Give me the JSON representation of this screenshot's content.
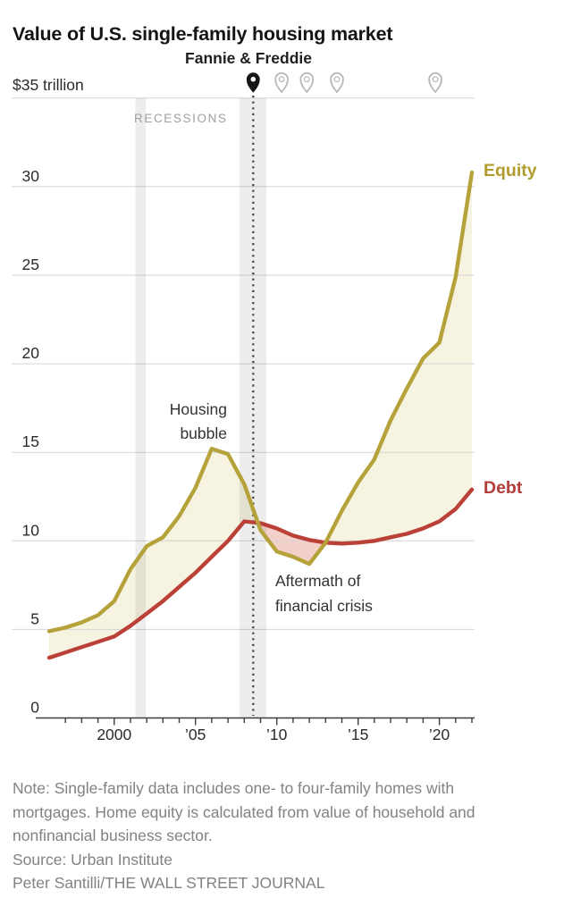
{
  "title": "Value of U.S. single-family housing market",
  "header": {
    "unit_label": "$35 trillion",
    "fannie_label": "Fannie & Freddie"
  },
  "annotations": {
    "recessions": "RECESSIONS",
    "housing_lines": [
      "Housing",
      "bubble"
    ],
    "aftermath_lines": [
      "Aftermath of",
      "financial crisis"
    ],
    "equity": "Equity",
    "debt": "Debt"
  },
  "footer": {
    "note_lines": [
      "Note: Single-family data includes one- to four-family homes with",
      "mortgages. Home equity is calculated from value of household and",
      "nonfinancial business sector."
    ],
    "source": "Source: Urban Institute",
    "credit": "Peter Santilli/THE WALL STREET JOURNAL"
  },
  "colors": {
    "equity_line": "#b5a23a",
    "equity_label": "#b29b2d",
    "debt_line": "#bb4138",
    "debt_label": "#b23c38",
    "equity_fill": "#f7f3e1",
    "debt_fill": "#f4d0cb",
    "recession_band": "rgba(0,0,0,0.07)",
    "gridline": "#d4d4d4",
    "axis": "#3d3d3d",
    "dotted_line": "#4a4a4a",
    "pin_dark": "#161616",
    "pin_light": "#b8b8b8"
  },
  "chart_data": {
    "type": "area",
    "title": "Value of U.S. single-family housing market",
    "unit": "trillion U.S. dollars",
    "x": [
      1996,
      1997,
      1998,
      1999,
      2000,
      2001,
      2002,
      2003,
      2004,
      2005,
      2006,
      2007,
      2008,
      2009,
      2010,
      2011,
      2012,
      2013,
      2014,
      2015,
      2016,
      2017,
      2018,
      2019,
      2020,
      2021,
      2022
    ],
    "series": [
      {
        "name": "Equity",
        "color": "#b5a23a",
        "values": [
          4.9,
          5.1,
          5.4,
          5.8,
          6.6,
          8.4,
          9.7,
          10.2,
          11.4,
          13.0,
          15.2,
          14.9,
          13.2,
          10.6,
          9.4,
          9.1,
          8.7,
          9.9,
          11.7,
          13.3,
          14.6,
          16.8,
          18.6,
          20.3,
          21.2,
          24.9,
          30.8
        ]
      },
      {
        "name": "Debt",
        "color": "#bb4138",
        "values": [
          3.4,
          3.7,
          4.0,
          4.3,
          4.6,
          5.2,
          5.9,
          6.6,
          7.4,
          8.2,
          9.1,
          10.0,
          11.1,
          11.0,
          10.7,
          10.3,
          10.05,
          9.9,
          9.85,
          9.9,
          10.0,
          10.2,
          10.4,
          10.7,
          11.1,
          11.8,
          12.9
        ]
      }
    ],
    "xlim": [
      1996,
      2022
    ],
    "ylim": [
      0,
      35
    ],
    "grid": true,
    "y_ticks": [
      0,
      5,
      10,
      15,
      20,
      25,
      30
    ],
    "y_top_label": "$35 trillion",
    "x_ticks": [
      {
        "year": 2000,
        "label": "2000"
      },
      {
        "year": 2005,
        "label": "’05"
      },
      {
        "year": 2010,
        "label": "’10"
      },
      {
        "year": 2015,
        "label": "’15"
      },
      {
        "year": 2020,
        "label": "’20"
      }
    ],
    "recession_bands": [
      [
        2001.3,
        2001.95
      ],
      [
        2007.7,
        2009.35
      ]
    ],
    "event_pins": {
      "label": "Fannie & Freddie",
      "years": [
        2008.55,
        2010.3,
        2011.85,
        2013.7,
        2019.75
      ],
      "highlighted_index": 0,
      "event_line_year": 2008.55
    },
    "legend_position": "line-end-right"
  }
}
